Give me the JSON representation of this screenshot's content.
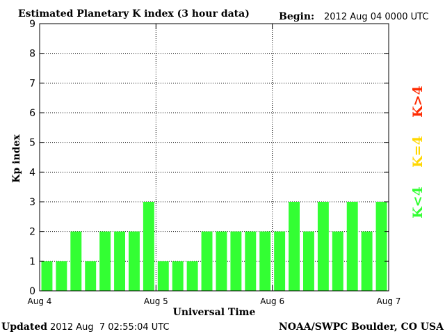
{
  "header": {
    "title": "Estimated Planetary K index (3 hour data)",
    "begin_label": "Begin:",
    "begin_value": "2012 Aug 04 0000 UTC"
  },
  "footer": {
    "updated_label": "Updated",
    "updated_value": "2012 Aug  7 02:55:04 UTC",
    "credit": "NOAA/SWPC Boulder, CO USA"
  },
  "legend": {
    "high": {
      "label": "K>4",
      "color": "#ff2a00"
    },
    "mid": {
      "label": "K=4",
      "color": "#ffd700"
    },
    "low": {
      "label": "K<4",
      "color": "#33ff33"
    }
  },
  "chart_data": {
    "type": "bar",
    "title": "Estimated Planetary K index (3 hour data)",
    "xlabel": "Universal Time",
    "ylabel": "Kp index",
    "ylim": [
      0,
      9
    ],
    "yticks": [
      "0",
      "1",
      "2",
      "3",
      "4",
      "5",
      "6",
      "7",
      "8",
      "9"
    ],
    "x_tick_labels": [
      "Aug 4",
      "Aug 5",
      "Aug 6",
      "Aug 7"
    ],
    "grid": "dotted",
    "bar_color": "#33ff33",
    "values": [
      1,
      1,
      2,
      1,
      2,
      2,
      2,
      3,
      1,
      1,
      1,
      2,
      2,
      2,
      2,
      2,
      2,
      3,
      2,
      3,
      2,
      3,
      2,
      3
    ]
  }
}
